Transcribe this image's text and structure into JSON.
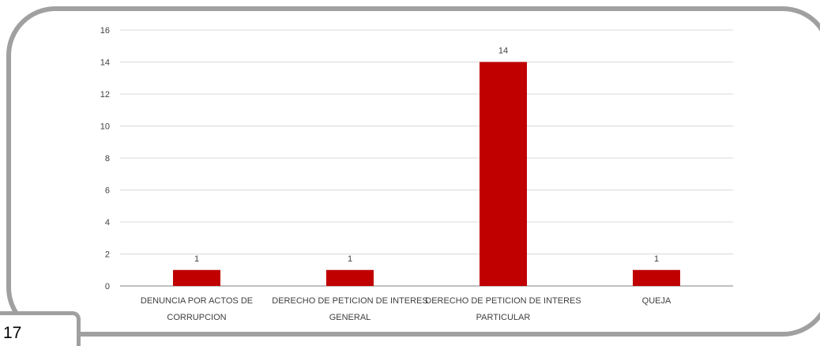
{
  "page": {
    "number": "17"
  },
  "chart_data": {
    "type": "bar",
    "categories": [
      [
        "DENUNCIA POR ACTOS DE",
        "CORRUPCION"
      ],
      [
        "DERECHO DE PETICION DE INTERES",
        "GENERAL"
      ],
      [
        "DERECHO DE PETICION DE INTERES",
        "PARTICULAR"
      ],
      [
        "QUEJA"
      ]
    ],
    "values": [
      1,
      1,
      14,
      1
    ],
    "data_labels": [
      "1",
      "1",
      "14",
      "1"
    ],
    "ylim": [
      0,
      16
    ],
    "yticks": [
      0,
      2,
      4,
      6,
      8,
      10,
      12,
      14,
      16
    ],
    "grid": true,
    "bar_color": "#c00000",
    "title": "",
    "xlabel": "",
    "ylabel": ""
  }
}
